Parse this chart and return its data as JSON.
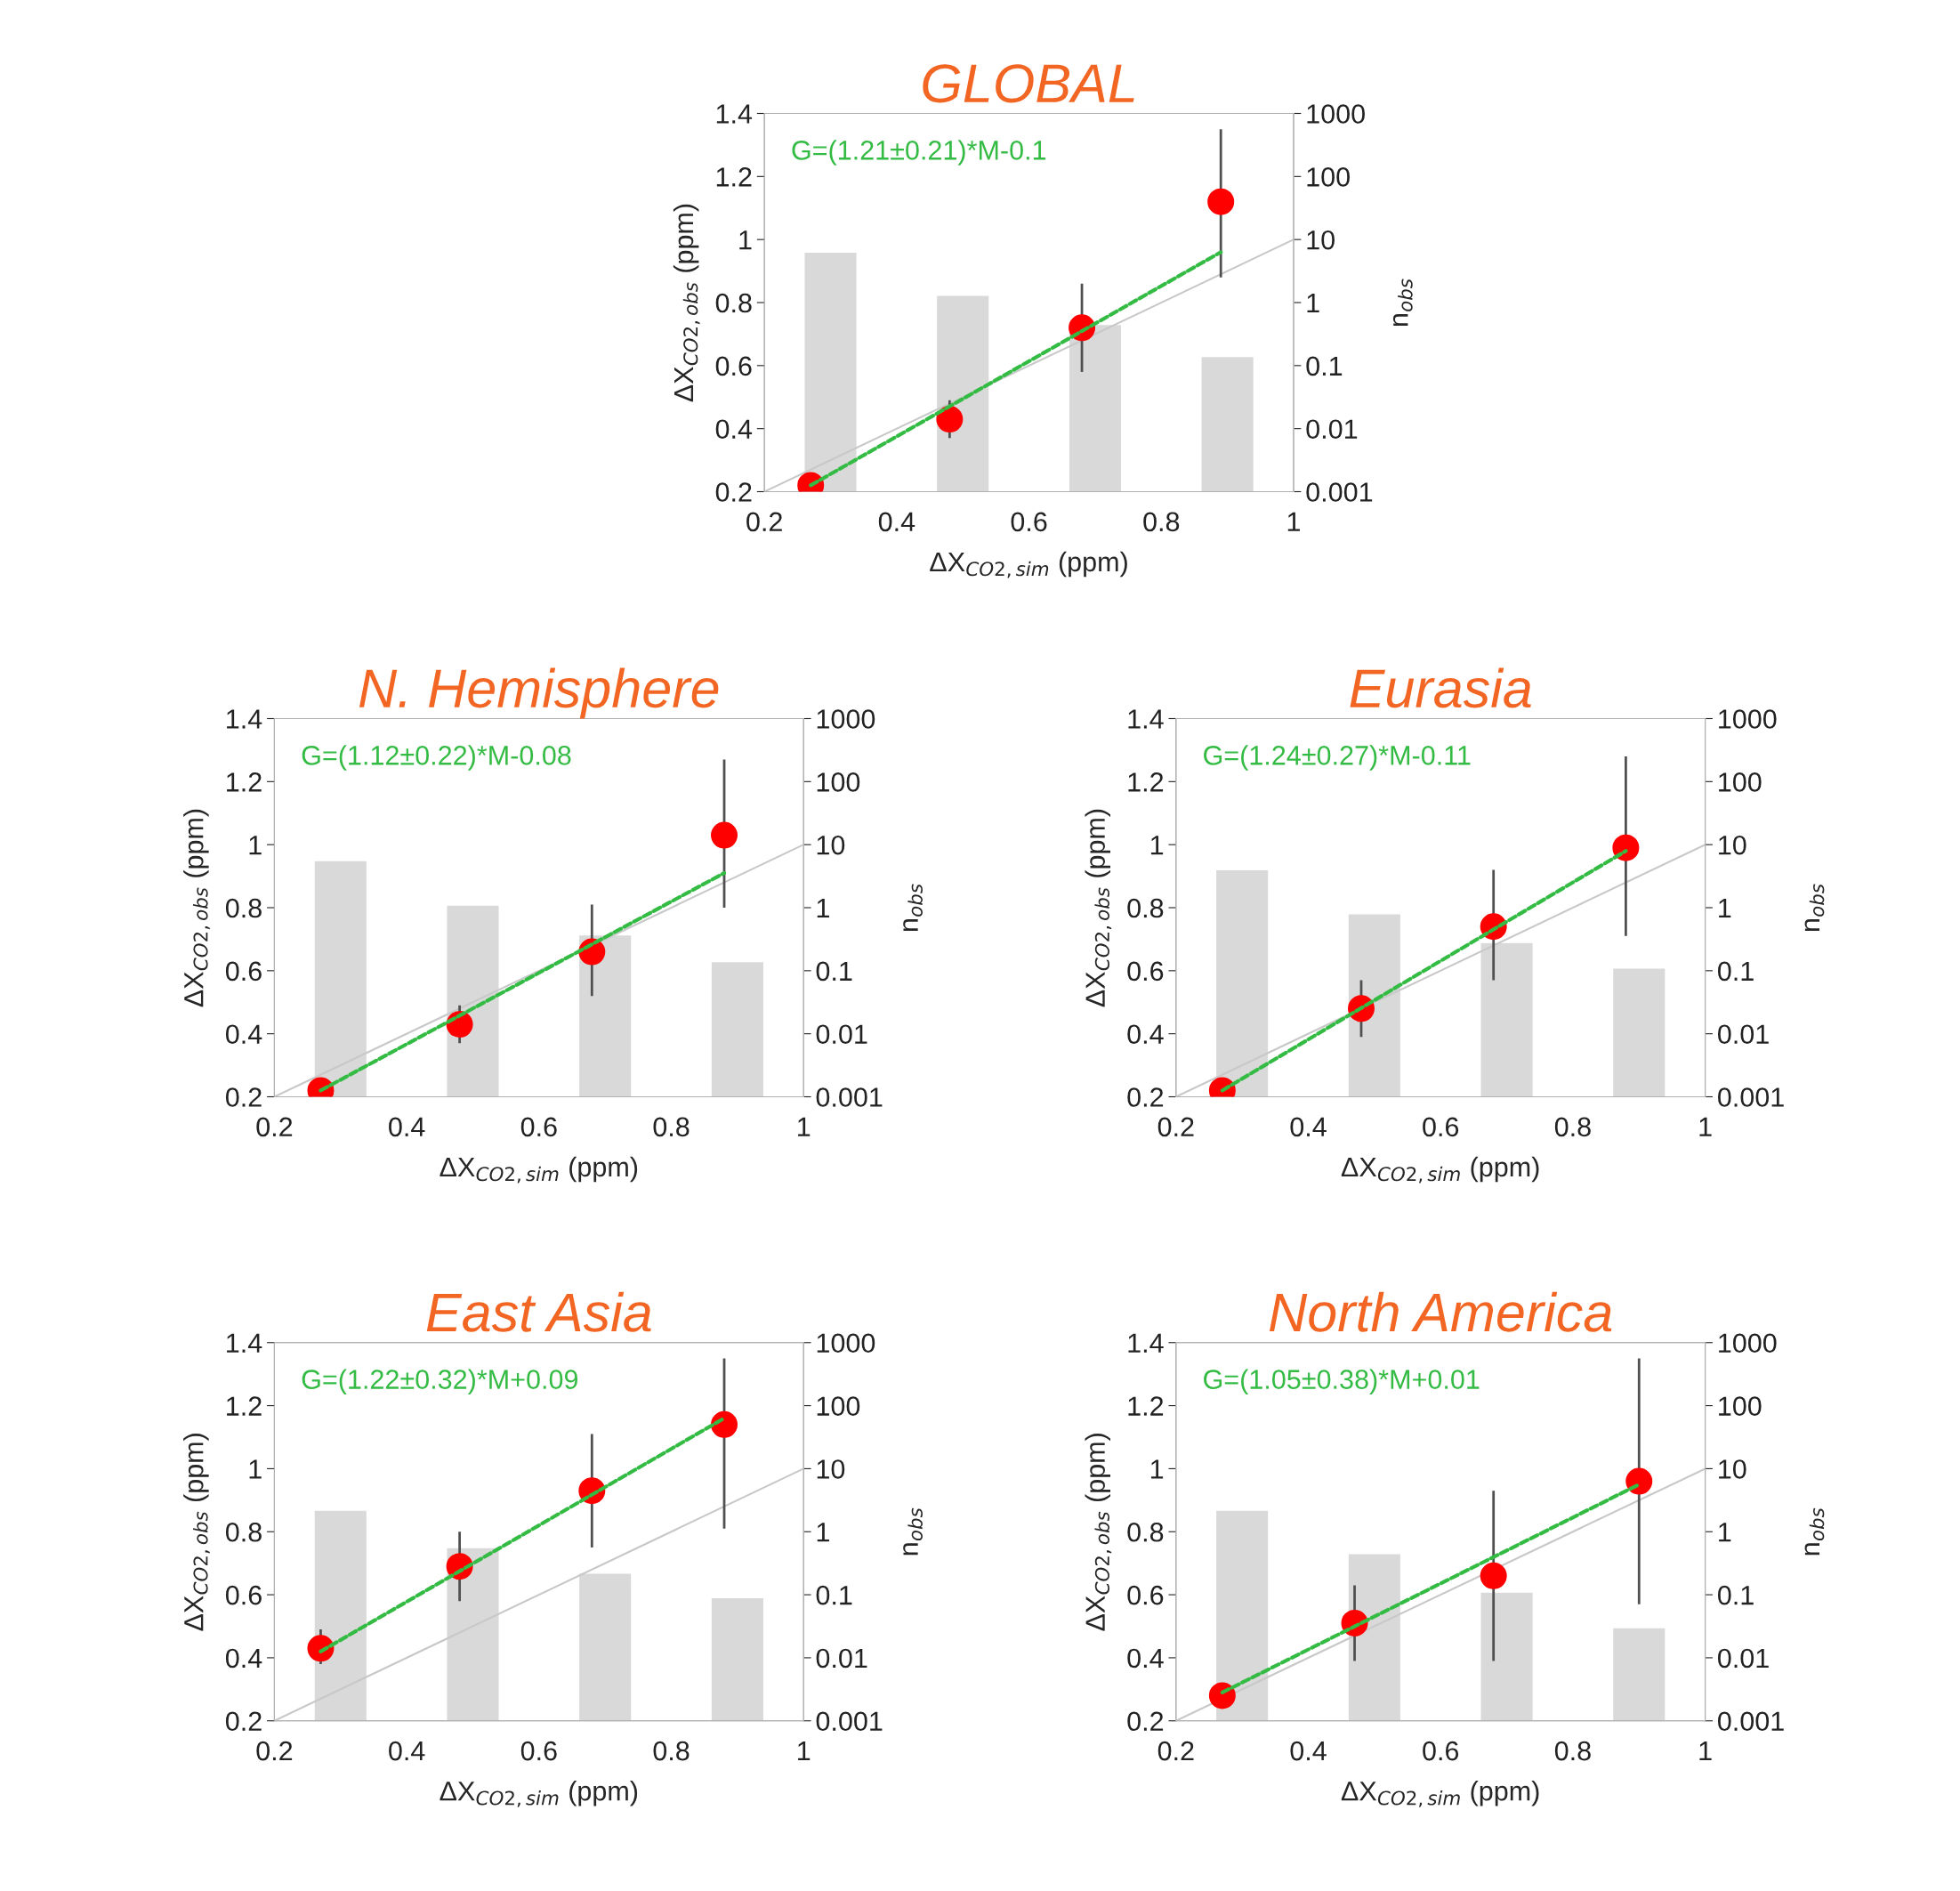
{
  "chart_data": [
    {
      "type": "scatter",
      "title": "GLOBAL",
      "xlabel": "ΔX$_{CO2,sim}$ (ppm)",
      "ylabel": "ΔX$_{CO2,obs}$ (ppm)",
      "y2label": "n$_{obs}$",
      "annotations": [
        "G=(1.21±0.21)*M-0.1"
      ],
      "xlim": [
        0.2,
        1
      ],
      "xticks": [
        0.2,
        0.4,
        0.6,
        0.8,
        1
      ],
      "ylim": [
        0.2,
        1.4
      ],
      "yticks": [
        0.2,
        0.4,
        0.6,
        0.8,
        1,
        1.2,
        1.4
      ],
      "y2lim": [
        0.001,
        1000
      ],
      "y2ticks": [
        0.001,
        0.01,
        0.1,
        1,
        10,
        100,
        1000
      ],
      "log": "y2",
      "series": [
        {
          "type": "bar",
          "axis": "y2",
          "color": "#d9d9d9",
          "x": [
            0.3,
            0.5,
            0.7,
            0.9
          ],
          "values": [
            6.3,
            1.3,
            0.45,
            0.14
          ]
        },
        {
          "type": "line",
          "color": "#c8c8c8",
          "x": [
            0.2,
            1
          ],
          "values": [
            0.2,
            1
          ]
        },
        {
          "type": "line",
          "line_style": "dashed",
          "color": "#33bb44",
          "x": [
            0.27,
            0.89
          ],
          "values": [
            0.22,
            0.96
          ]
        },
        {
          "marker": "circle",
          "color": "#ff0000",
          "x": [
            0.27,
            0.48,
            0.68,
            0.89
          ],
          "values": [
            0.22,
            0.43,
            0.72,
            1.12
          ],
          "errors": [
            null,
            [
              0.37,
              0.49
            ],
            [
              0.58,
              0.86
            ],
            [
              0.88,
              1.35
            ]
          ]
        }
      ]
    },
    {
      "type": "scatter",
      "title": "N. Hemisphere",
      "xlabel": "ΔX$_{CO2,sim}$ (ppm)",
      "ylabel": "ΔX$_{CO2,obs}$ (ppm)",
      "y2label": "n$_{obs}$",
      "annotations": [
        "G=(1.12±0.22)*M-0.08"
      ],
      "xlim": [
        0.2,
        1
      ],
      "xticks": [
        0.2,
        0.4,
        0.6,
        0.8,
        1
      ],
      "ylim": [
        0.2,
        1.4
      ],
      "yticks": [
        0.2,
        0.4,
        0.6,
        0.8,
        1,
        1.2,
        1.4
      ],
      "y2lim": [
        0.001,
        1000
      ],
      "y2ticks": [
        0.001,
        0.01,
        0.1,
        1,
        10,
        100,
        1000
      ],
      "log": "y2",
      "series": [
        {
          "type": "bar",
          "axis": "y2",
          "color": "#d9d9d9",
          "x": [
            0.3,
            0.5,
            0.7,
            0.9
          ],
          "values": [
            5.6,
            1.1,
            0.37,
            0.14
          ]
        },
        {
          "type": "line",
          "color": "#c8c8c8",
          "x": [
            0.2,
            1
          ],
          "values": [
            0.2,
            1
          ]
        },
        {
          "type": "line",
          "line_style": "dashed",
          "color": "#33bb44",
          "x": [
            0.27,
            0.88
          ],
          "values": [
            0.22,
            0.91
          ]
        },
        {
          "marker": "circle",
          "color": "#ff0000",
          "x": [
            0.27,
            0.48,
            0.68,
            0.88
          ],
          "values": [
            0.22,
            0.43,
            0.66,
            1.03
          ],
          "errors": [
            null,
            [
              0.37,
              0.49
            ],
            [
              0.52,
              0.81
            ],
            [
              0.8,
              1.27
            ]
          ]
        }
      ]
    },
    {
      "type": "scatter",
      "title": "Eurasia",
      "xlabel": "ΔX$_{CO2,sim}$ (ppm)",
      "ylabel": "ΔX$_{CO2,obs}$ (ppm)",
      "y2label": "n$_{obs}$",
      "annotations": [
        "G=(1.24±0.27)*M-0.11"
      ],
      "xlim": [
        0.2,
        1
      ],
      "xticks": [
        0.2,
        0.4,
        0.6,
        0.8,
        1
      ],
      "ylim": [
        0.2,
        1.4
      ],
      "yticks": [
        0.2,
        0.4,
        0.6,
        0.8,
        1,
        1.2,
        1.4
      ],
      "y2lim": [
        0.001,
        1000
      ],
      "y2ticks": [
        0.001,
        0.01,
        0.1,
        1,
        10,
        100,
        1000
      ],
      "log": "y2",
      "series": [
        {
          "type": "bar",
          "axis": "y2",
          "color": "#d9d9d9",
          "x": [
            0.3,
            0.5,
            0.7,
            0.9
          ],
          "values": [
            4,
            0.8,
            0.28,
            0.11
          ]
        },
        {
          "type": "line",
          "color": "#c8c8c8",
          "x": [
            0.2,
            1
          ],
          "values": [
            0.2,
            1
          ]
        },
        {
          "type": "line",
          "line_style": "dashed",
          "color": "#33bb44",
          "x": [
            0.27,
            0.88
          ],
          "values": [
            0.22,
            0.98
          ]
        },
        {
          "marker": "circle",
          "color": "#ff0000",
          "x": [
            0.27,
            0.48,
            0.68,
            0.88
          ],
          "values": [
            0.22,
            0.48,
            0.74,
            0.99
          ],
          "errors": [
            null,
            [
              0.39,
              0.57
            ],
            [
              0.57,
              0.92
            ],
            [
              0.71,
              1.28
            ]
          ]
        }
      ]
    },
    {
      "type": "scatter",
      "title": "East Asia",
      "xlabel": "ΔX$_{CO2,sim}$ (ppm)",
      "ylabel": "ΔX$_{CO2,obs}$ (ppm)",
      "y2label": "n$_{obs}$",
      "annotations": [
        "G=(1.22±0.32)*M+0.09"
      ],
      "xlim": [
        0.2,
        1
      ],
      "xticks": [
        0.2,
        0.4,
        0.6,
        0.8,
        1
      ],
      "ylim": [
        0.2,
        1.4
      ],
      "yticks": [
        0.2,
        0.4,
        0.6,
        0.8,
        1,
        1.2,
        1.4
      ],
      "y2lim": [
        0.001,
        1000
      ],
      "y2ticks": [
        0.001,
        0.01,
        0.1,
        1,
        10,
        100,
        1000
      ],
      "log": "y2",
      "series": [
        {
          "type": "bar",
          "axis": "y2",
          "color": "#d9d9d9",
          "x": [
            0.3,
            0.5,
            0.7,
            0.9
          ],
          "values": [
            2.2,
            0.56,
            0.22,
            0.09
          ]
        },
        {
          "type": "line",
          "color": "#c8c8c8",
          "x": [
            0.2,
            1
          ],
          "values": [
            0.2,
            1
          ]
        },
        {
          "type": "line",
          "line_style": "dashed",
          "color": "#33bb44",
          "x": [
            0.27,
            0.88
          ],
          "values": [
            0.42,
            1.16
          ]
        },
        {
          "marker": "circle",
          "color": "#ff0000",
          "x": [
            0.27,
            0.48,
            0.68,
            0.88
          ],
          "values": [
            0.43,
            0.69,
            0.93,
            1.14
          ],
          "errors": [
            [
              0.38,
              0.49
            ],
            [
              0.58,
              0.8
            ],
            [
              0.75,
              1.11
            ],
            [
              0.81,
              1.35
            ]
          ]
        }
      ]
    },
    {
      "type": "scatter",
      "title": "North America",
      "xlabel": "ΔX$_{CO2,sim}$ (ppm)",
      "ylabel": "ΔX$_{CO2,obs}$ (ppm)",
      "y2label": "n$_{obs}$",
      "annotations": [
        "G=(1.05±0.38)*M+0.01"
      ],
      "xlim": [
        0.2,
        1
      ],
      "xticks": [
        0.2,
        0.4,
        0.6,
        0.8,
        1
      ],
      "ylim": [
        0.2,
        1.4
      ],
      "yticks": [
        0.2,
        0.4,
        0.6,
        0.8,
        1,
        1.2,
        1.4
      ],
      "y2lim": [
        0.001,
        1000
      ],
      "y2ticks": [
        0.001,
        0.01,
        0.1,
        1,
        10,
        100,
        1000
      ],
      "log": "y2",
      "series": [
        {
          "type": "bar",
          "axis": "y2",
          "color": "#d9d9d9",
          "x": [
            0.3,
            0.5,
            0.7,
            0.9
          ],
          "values": [
            2.2,
            0.45,
            0.11,
            0.03
          ]
        },
        {
          "type": "line",
          "color": "#c8c8c8",
          "x": [
            0.2,
            1
          ],
          "values": [
            0.2,
            1
          ]
        },
        {
          "type": "line",
          "line_style": "dashed",
          "color": "#33bb44",
          "x": [
            0.27,
            0.9
          ],
          "values": [
            0.29,
            0.95
          ]
        },
        {
          "marker": "circle",
          "color": "#ff0000",
          "x": [
            0.27,
            0.47,
            0.68,
            0.9
          ],
          "values": [
            0.28,
            0.51,
            0.66,
            0.96
          ],
          "errors": [
            null,
            [
              0.39,
              0.63
            ],
            [
              0.39,
              0.93
            ],
            [
              0.57,
              1.35
            ]
          ]
        }
      ]
    }
  ]
}
